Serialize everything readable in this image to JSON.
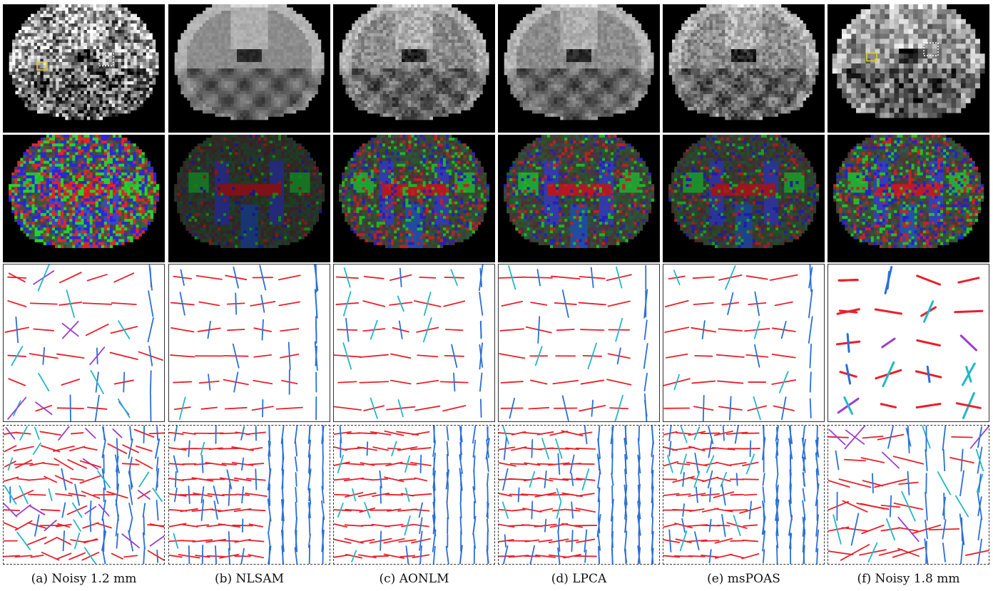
{
  "figure": {
    "columns": [
      {
        "id": "a",
        "caption": "(a) Noisy 1.2 mm",
        "noise": 0.9,
        "smooth": 0.15,
        "fa_noise": 0.9,
        "fa_tint": 1.0,
        "roi_markers": true,
        "coarse": false
      },
      {
        "id": "b",
        "caption": "(b) NLSAM",
        "noise": 0.08,
        "smooth": 0.9,
        "fa_noise": 0.15,
        "fa_tint": 0.6,
        "roi_markers": false,
        "coarse": false
      },
      {
        "id": "c",
        "caption": "(c) AONLM",
        "noise": 0.25,
        "smooth": 0.7,
        "fa_noise": 0.45,
        "fa_tint": 0.85,
        "roi_markers": false,
        "coarse": false
      },
      {
        "id": "d",
        "caption": "(d) LPCA",
        "noise": 0.15,
        "smooth": 0.6,
        "fa_noise": 0.35,
        "fa_tint": 0.85,
        "roi_markers": false,
        "coarse": false
      },
      {
        "id": "e",
        "caption": "(e) msPOAS",
        "noise": 0.3,
        "smooth": 0.45,
        "fa_noise": 0.3,
        "fa_tint": 0.75,
        "roi_markers": false,
        "coarse": false
      },
      {
        "id": "f",
        "caption": "(f) Noisy 1.8 mm",
        "noise": 0.55,
        "smooth": 0.3,
        "fa_noise": 0.55,
        "fa_tint": 0.9,
        "roi_markers": true,
        "coarse": true
      }
    ],
    "colors": {
      "background": "#ffffff",
      "roi_solid": "#e6d11a",
      "roi_dashed": "#ffffff",
      "fiber_red": "#e8202a",
      "fiber_green": "#3fd23a",
      "fiber_blue": "#2a6fd8",
      "fiber_purple": "#9a3fd0",
      "fiber_cyan": "#22b8c8"
    }
  }
}
